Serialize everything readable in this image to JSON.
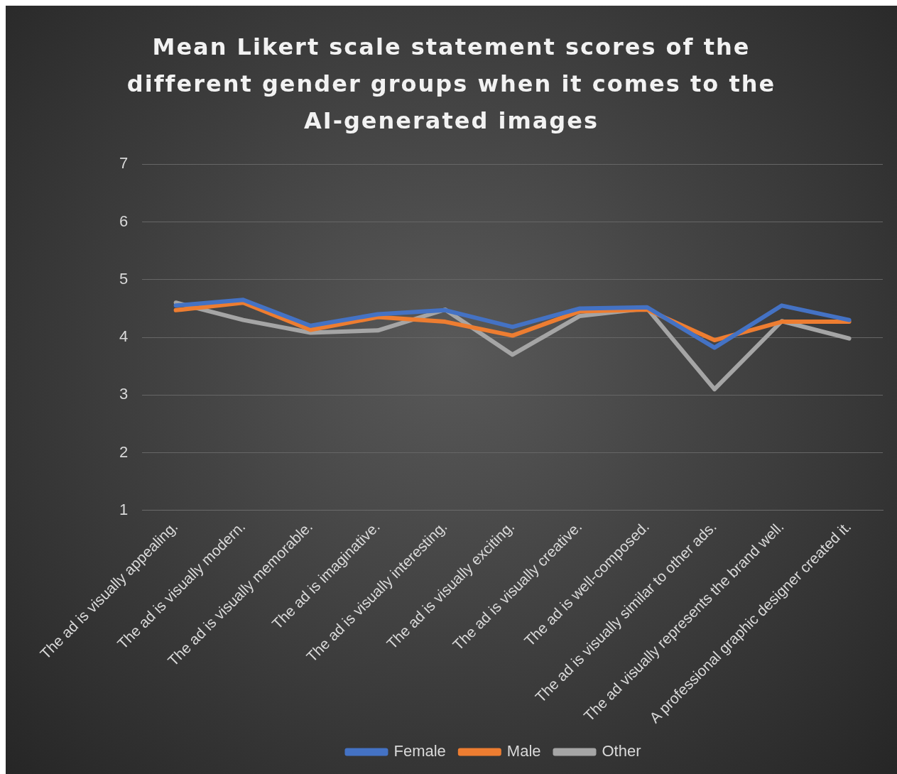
{
  "chart_data": {
    "type": "line",
    "title": "Mean Likert scale statement scores of the different gender groups when it comes to the AI-generated images",
    "categories": [
      "The ad is visually appealing.",
      "The ad is visually modern.",
      "The ad is visually memorable.",
      "The ad is imaginative.",
      "The ad is visually interesting.",
      "The ad is visually exciting.",
      "The ad is visually creative.",
      "The ad is well-composed.",
      "The ad is visually similar to other ads.",
      "The ad visually represents the brand well.",
      "A professional graphic designer created it."
    ],
    "series": [
      {
        "name": "Female",
        "color": "#4472c4",
        "values": [
          4.55,
          4.65,
          4.2,
          4.4,
          4.47,
          4.18,
          4.5,
          4.52,
          3.82,
          4.55,
          4.3
        ]
      },
      {
        "name": "Male",
        "color": "#ed7d31",
        "values": [
          4.47,
          4.6,
          4.13,
          4.35,
          4.27,
          4.03,
          4.45,
          4.48,
          3.95,
          4.27,
          4.27
        ]
      },
      {
        "name": "Other",
        "color": "#a5a5a5",
        "values": [
          4.6,
          4.3,
          4.08,
          4.12,
          4.48,
          3.7,
          4.37,
          4.5,
          3.1,
          4.28,
          3.98
        ]
      }
    ],
    "ylim": [
      1,
      7
    ],
    "yticks": [
      1,
      2,
      3,
      4,
      5,
      6,
      7
    ],
    "grid": "y",
    "legend": "bottom",
    "marker": "none",
    "line_style": "solid"
  }
}
